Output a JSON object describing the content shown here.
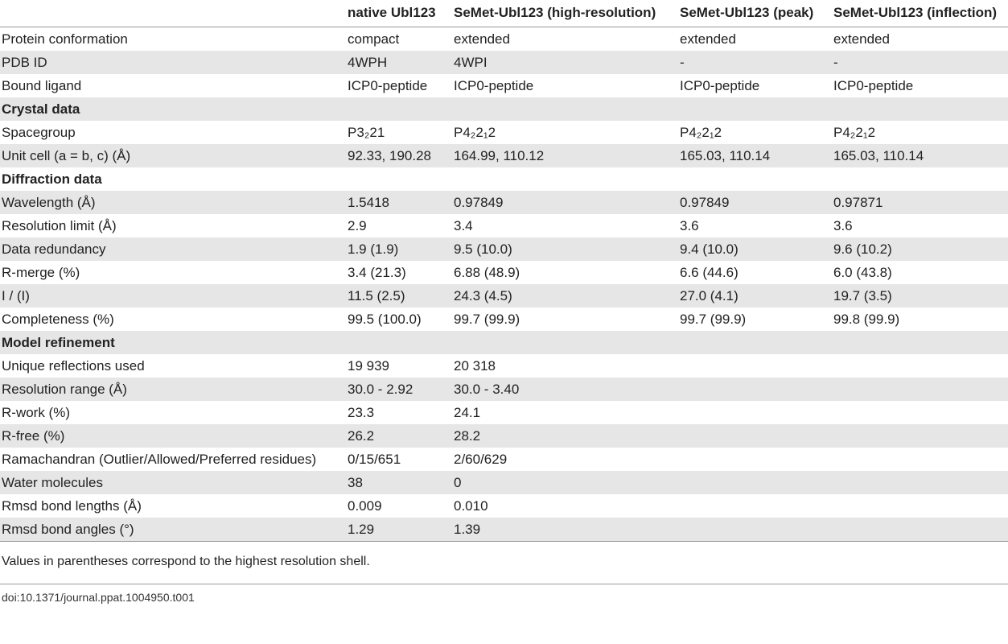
{
  "table": {
    "columns": [
      "native Ubl123",
      "SeMet-Ubl123 (high-resolution)",
      "SeMet-Ubl123 (peak)",
      "SeMet-Ubl123 (inflection)"
    ],
    "rows": [
      [
        "Protein conformation",
        "compact",
        "extended",
        "extended",
        "extended"
      ],
      [
        "PDB ID",
        "4WPH",
        "4WPI",
        "-",
        "-"
      ],
      [
        "Bound ligand",
        "ICP0-peptide",
        "ICP0-peptide",
        "ICP0-peptide",
        "ICP0-peptide"
      ],
      [
        "Crystal data"
      ],
      [
        "Spacegroup",
        "P3₂21",
        "P4₂2₁2",
        "P4₂2₁2",
        "P4₂2₁2"
      ],
      [
        "Unit cell (a = b, c) (Å)",
        "92.33, 190.28",
        "164.99, 110.12",
        "165.03, 110.14",
        "165.03, 110.14"
      ],
      [
        "Diffraction data"
      ],
      [
        "Wavelength (Å)",
        "1.5418",
        "0.97849",
        "0.97849",
        "0.97871"
      ],
      [
        "Resolution limit (Å)",
        "2.9",
        "3.4",
        "3.6",
        "3.6"
      ],
      [
        "Data redundancy",
        "1.9 (1.9)",
        "9.5 (10.0)",
        "9.4 (10.0)",
        "9.6 (10.2)"
      ],
      [
        "R-merge (%)",
        "3.4 (21.3)",
        "6.88 (48.9)",
        "6.6 (44.6)",
        "6.0 (43.8)"
      ],
      [
        "I / (I)",
        "11.5 (2.5)",
        "24.3 (4.5)",
        "27.0 (4.1)",
        "19.7 (3.5)"
      ],
      [
        "Completeness (%)",
        "99.5 (100.0)",
        "99.7 (99.9)",
        "99.7 (99.9)",
        "99.8 (99.9)"
      ],
      [
        "Model refinement"
      ],
      [
        "Unique reflections used",
        "19 939",
        "20 318"
      ],
      [
        "Resolution range (Å)",
        "30.0 - 2.92",
        "30.0 - 3.40"
      ],
      [
        "R-work (%)",
        "23.3",
        "24.1"
      ],
      [
        "R-free (%)",
        "26.2",
        "28.2"
      ],
      [
        "Ramachandran (Outlier/Allowed/Preferred residues)",
        "0/15/651",
        "2/60/629"
      ],
      [
        "Water molecules",
        "38",
        "0"
      ],
      [
        "Rmsd bond lengths (Å)",
        "0.009",
        "0.010"
      ],
      [
        "Rmsd bond angles (°)",
        "1.29",
        "1.39"
      ]
    ]
  },
  "footnote": "Values in parentheses correspond to the highest resolution shell.",
  "doi": "doi:10.1371/journal.ppat.1004950.t001"
}
